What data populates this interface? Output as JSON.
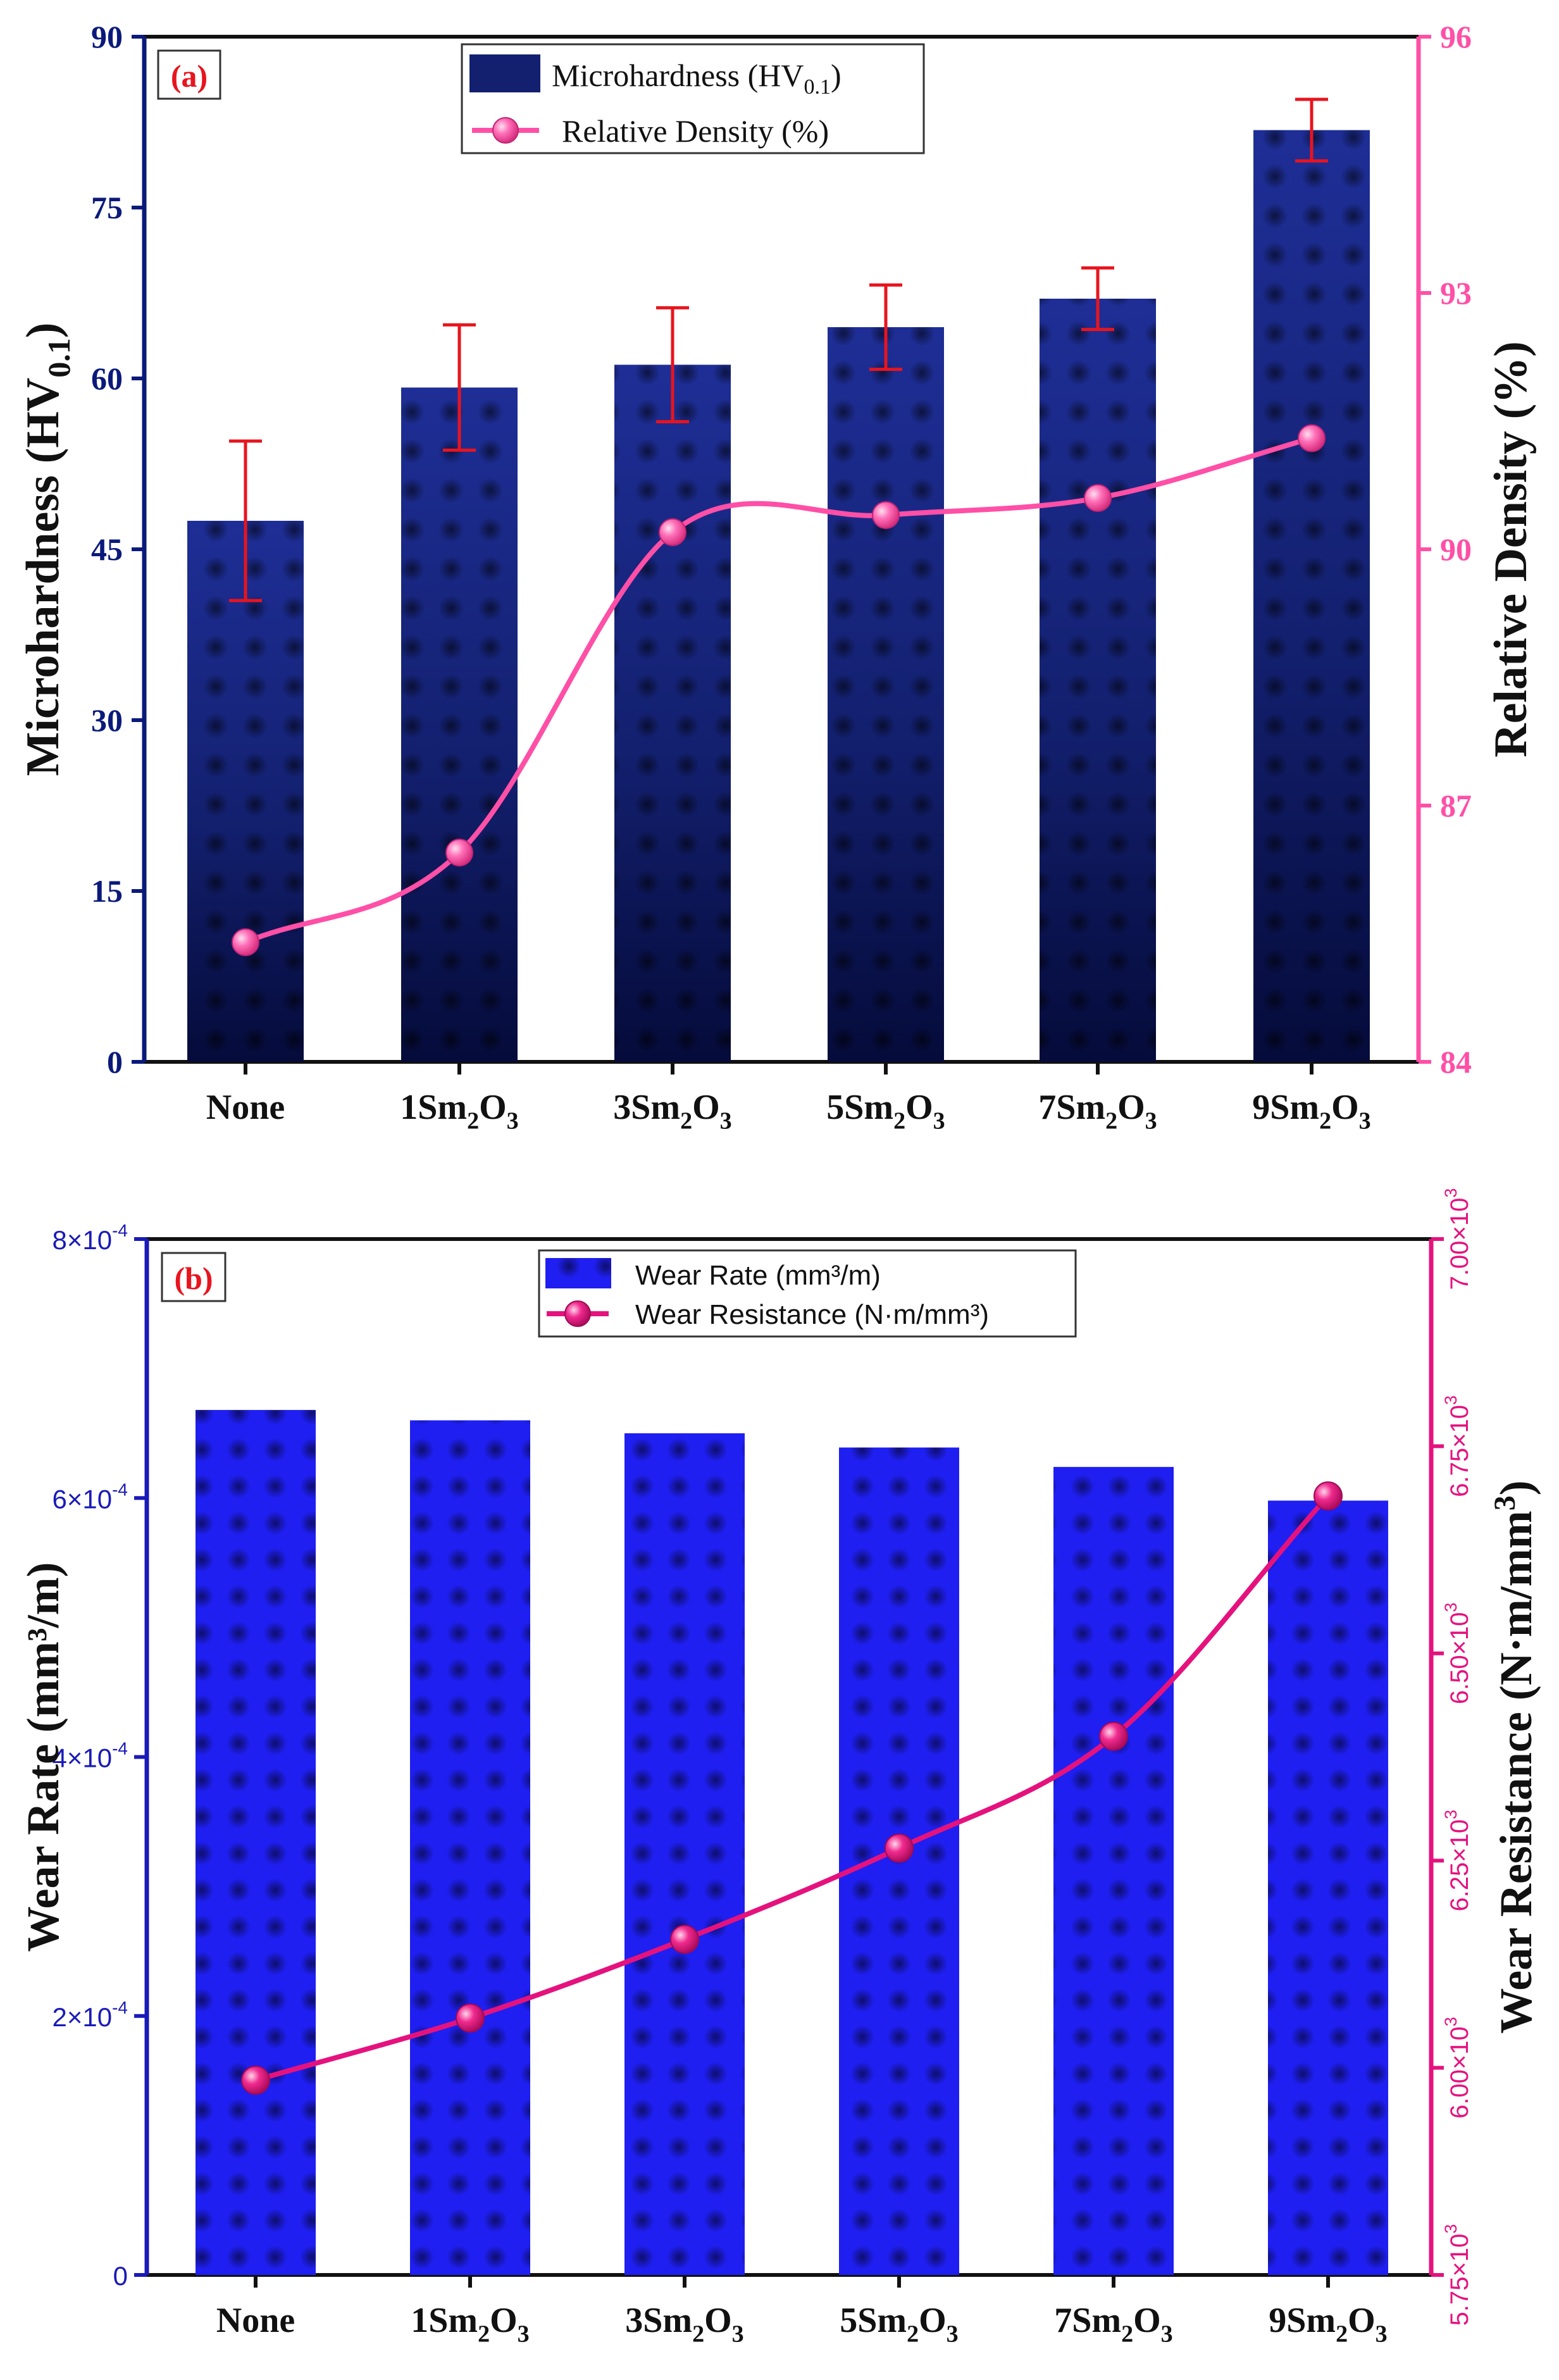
{
  "chart_data": [
    {
      "type": "bar",
      "panel_label": "(a)",
      "categories": [
        {
          "base": "None",
          "sub": "",
          "tail": ""
        },
        {
          "base": "1Sm",
          "sub": "2",
          "tail": "O",
          "sub2": "3"
        },
        {
          "base": "3Sm",
          "sub": "2",
          "tail": "O",
          "sub2": "3"
        },
        {
          "base": "5Sm",
          "sub": "2",
          "tail": "O",
          "sub2": "3"
        },
        {
          "base": "7Sm",
          "sub": "2",
          "tail": "O",
          "sub2": "3"
        },
        {
          "base": "9Sm",
          "sub": "2",
          "tail": "O",
          "sub2": "3"
        }
      ],
      "bars": {
        "name": {
          "base": "Microhardness (HV",
          "sub": "0.1",
          "tail": ")"
        },
        "values": [
          47.5,
          59.2,
          61.2,
          64.5,
          67.0,
          81.8
        ],
        "errors": [
          7.0,
          5.5,
          5.0,
          3.7,
          2.7,
          2.7
        ],
        "color": "#0b1a7a",
        "error_color": "#e8141e"
      },
      "line": {
        "name": "Relative Density (%)",
        "values": [
          85.4,
          86.45,
          90.2,
          90.4,
          90.6,
          91.3
        ],
        "color": "#ff4fa6"
      },
      "y_left": {
        "label": {
          "base": "Microhardness (HV",
          "sub": "0.1",
          "tail": ")"
        },
        "min": 0,
        "max": 90,
        "ticks": [
          0,
          15,
          30,
          45,
          60,
          75,
          90
        ],
        "tick_labels": [
          "0",
          "15",
          "30",
          "45",
          "60",
          "75",
          "90"
        ],
        "color": "#0b1a7a"
      },
      "y_right": {
        "label": "Relative Density (%)",
        "min": 84,
        "max": 96,
        "ticks": [
          84,
          87,
          90,
          93,
          96
        ],
        "tick_labels": [
          "84",
          "87",
          "90",
          "93",
          "96"
        ],
        "color": "#ff4fa6"
      },
      "grid": false,
      "legend_position": "top-center"
    },
    {
      "type": "bar",
      "panel_label": "(b)",
      "categories": [
        {
          "base": "None",
          "sub": "",
          "tail": ""
        },
        {
          "base": "1Sm",
          "sub": "2",
          "tail": "O",
          "sub2": "3"
        },
        {
          "base": "3Sm",
          "sub": "2",
          "tail": "O",
          "sub2": "3"
        },
        {
          "base": "5Sm",
          "sub": "2",
          "tail": "O",
          "sub2": "3"
        },
        {
          "base": "7Sm",
          "sub": "2",
          "tail": "O",
          "sub2": "3"
        },
        {
          "base": "9Sm",
          "sub": "2",
          "tail": "O",
          "sub2": "3"
        }
      ],
      "bars": {
        "name": "Wear Rate (mm³/m)",
        "values": [
          0.000668,
          0.00066,
          0.00065,
          0.000639,
          0.000624,
          0.000598
        ],
        "color": "#1c1cf0"
      },
      "line": {
        "name": "Wear Resistance (N·m/mm³)",
        "values": [
          5985,
          6060,
          6155,
          6265,
          6400,
          6690
        ],
        "color": "#e5127e"
      },
      "y_left": {
        "label": "Wear Rate (mm³/m)",
        "min": 0,
        "max": 0.0008,
        "ticks": [
          0,
          0.0002,
          0.0004,
          0.0006,
          0.0008
        ],
        "tick_labels": [
          {
            "b": "0"
          },
          {
            "b": "2×10",
            "e": "-4"
          },
          {
            "b": "4×10",
            "e": "-4"
          },
          {
            "b": "6×10",
            "e": "-4"
          },
          {
            "b": "8×10",
            "e": "-4"
          }
        ],
        "color": "#1a1ab8"
      },
      "y_right": {
        "label": {
          "base": "Wear Resistance (N·m/mm",
          "sup": "3",
          "tail": ")"
        },
        "min": 5750,
        "max": 7000,
        "ticks": [
          5750,
          6000,
          6250,
          6500,
          6750,
          7000
        ],
        "tick_labels": [
          {
            "b": "5.75×10",
            "e": "3"
          },
          {
            "b": "6.00×10",
            "e": "3"
          },
          {
            "b": "6.25×10",
            "e": "3"
          },
          {
            "b": "6.50×10",
            "e": "3"
          },
          {
            "b": "6.75×10",
            "e": "3"
          },
          {
            "b": "7.00×10",
            "e": "3"
          }
        ],
        "color": "#e5127e"
      },
      "grid": false,
      "legend_position": "top-center"
    }
  ]
}
